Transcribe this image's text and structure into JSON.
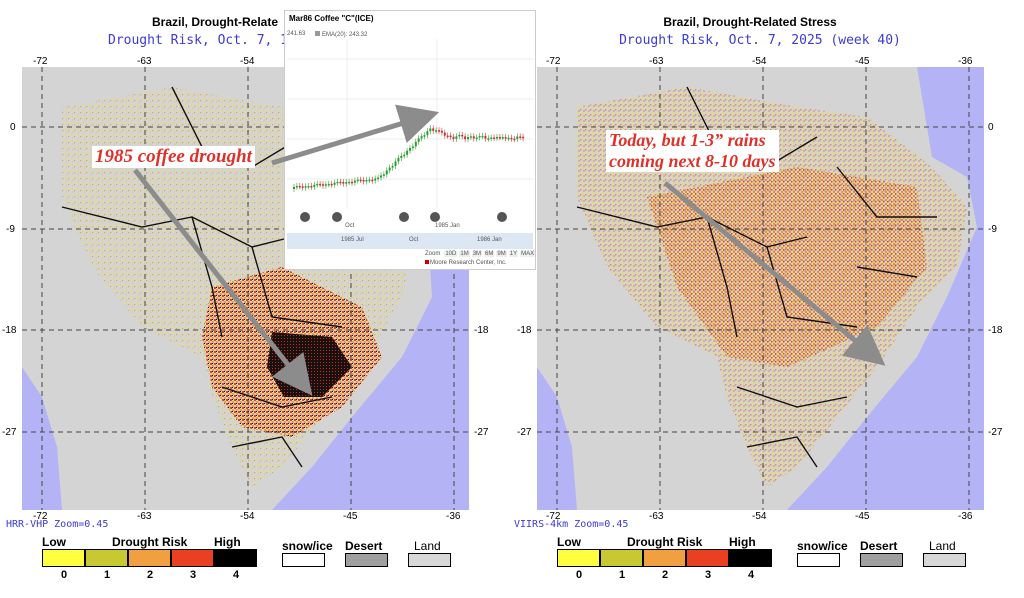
{
  "left_panel": {
    "title": "Brazil, Drought-Relate",
    "subtitle": "Drought Risk, Oct. 7, 1",
    "zoom_label": "HRR-VHP Zoom=0.45",
    "top_ticks": [
      "-72",
      "-63",
      "-54"
    ],
    "bottom_ticks": [
      "-72",
      "-63",
      "-54",
      "-45",
      "-36"
    ],
    "left_ticks": [
      "0",
      "-9",
      "-18",
      "-27"
    ],
    "right_ticks": [
      "-18",
      "-27"
    ],
    "annotation": "1985 coffee drought"
  },
  "right_panel": {
    "title": "Brazil, Drought-Related Stress",
    "subtitle": "Drought Risk, Oct. 7, 2025 (week 40)",
    "zoom_label": "VIIRS-4km Zoom=0.45",
    "top_ticks": [
      "-72",
      "-63",
      "-54",
      "-45",
      "-36"
    ],
    "bottom_ticks": [
      "-72",
      "-63",
      "-54",
      "-45",
      "-36"
    ],
    "left_ticks": [
      "-9",
      "-18",
      "-27"
    ],
    "right_ticks": [
      "0",
      "-9",
      "-18",
      "-27"
    ],
    "annotation_line1": "Today, but 1-3” rains",
    "annotation_line2": "coming next 8-10 days"
  },
  "legend": {
    "low_label": "Low",
    "risk_label": "Drought Risk",
    "high_label": "High",
    "numbers": [
      "0",
      "1",
      "2",
      "3",
      "4"
    ],
    "colors": [
      "#ffff40",
      "#c8c832",
      "#f0a040",
      "#e84020",
      "#000000"
    ],
    "snow_label": "snow/ice",
    "desert_label": "Desert",
    "land_label": "Land",
    "snow_color": "#ffffff",
    "desert_color": "#a0a0a0",
    "land_color": "#d8d8d8"
  },
  "inset_chart": {
    "title": "Mar86 Coffee \"C\"(ICE)",
    "price_label": "241.63",
    "ema_label": "EMA(20): 243.32",
    "x_labels": [
      "Oct",
      "1985 Jan"
    ],
    "nav_labels": [
      "1985 Jul",
      "Oct",
      "1986 Jan"
    ],
    "zoom_label": "Zoom",
    "zoom_buttons": [
      "10D",
      "1M",
      "3M",
      "6M",
      "9M",
      "1Y",
      "MAX"
    ],
    "source": "Moore Research Center, Inc."
  },
  "colors": {
    "ocean": "#b3b3f5",
    "land": "#d4d4d4",
    "annotation_red": "#e0302a",
    "arrow_gray": "#8c8c8c"
  }
}
